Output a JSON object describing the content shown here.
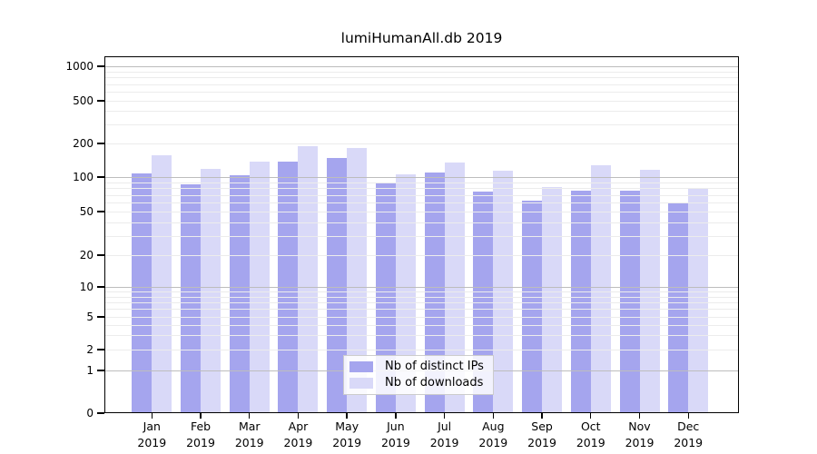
{
  "chart_data": {
    "type": "bar",
    "title": "lumiHumanAll.db 2019",
    "categories": [
      "Jan 2019",
      "Feb 2019",
      "Mar 2019",
      "Apr 2019",
      "May 2019",
      "Jun 2019",
      "Jul 2019",
      "Aug 2019",
      "Sep 2019",
      "Oct 2019",
      "Nov 2019",
      "Dec 2019"
    ],
    "x_tick_line1": [
      "Jan",
      "Feb",
      "Mar",
      "Apr",
      "May",
      "Jun",
      "Jul",
      "Aug",
      "Sep",
      "Oct",
      "Nov",
      "Dec"
    ],
    "x_tick_line2": [
      "2019",
      "2019",
      "2019",
      "2019",
      "2019",
      "2019",
      "2019",
      "2019",
      "2019",
      "2019",
      "2019",
      "2019"
    ],
    "series": [
      {
        "name": "Nb of distinct IPs",
        "color": "#a5a5ee",
        "values": [
          107,
          86,
          103,
          137,
          147,
          90,
          110,
          75,
          62,
          76,
          76,
          60
        ]
      },
      {
        "name": "Nb of downloads",
        "color": "#d9d9f8",
        "values": [
          156,
          119,
          138,
          188,
          183,
          105,
          136,
          115,
          82,
          127,
          116,
          80
        ]
      }
    ],
    "xlabel": "",
    "ylabel": "",
    "yscale": "symlog",
    "yticks": [
      0,
      1,
      2,
      5,
      10,
      20,
      50,
      100,
      200,
      500,
      1000
    ],
    "ylim": [
      0,
      1250
    ],
    "grid": "minor log gridlines light gray, decade lines darker gray, drawn over bars",
    "legend_position": "lower center inside plot",
    "colors": {
      "grid_minor": "#ececec",
      "grid_major": "#bdbdbd",
      "axis": "#000000",
      "background": "#ffffff"
    }
  }
}
